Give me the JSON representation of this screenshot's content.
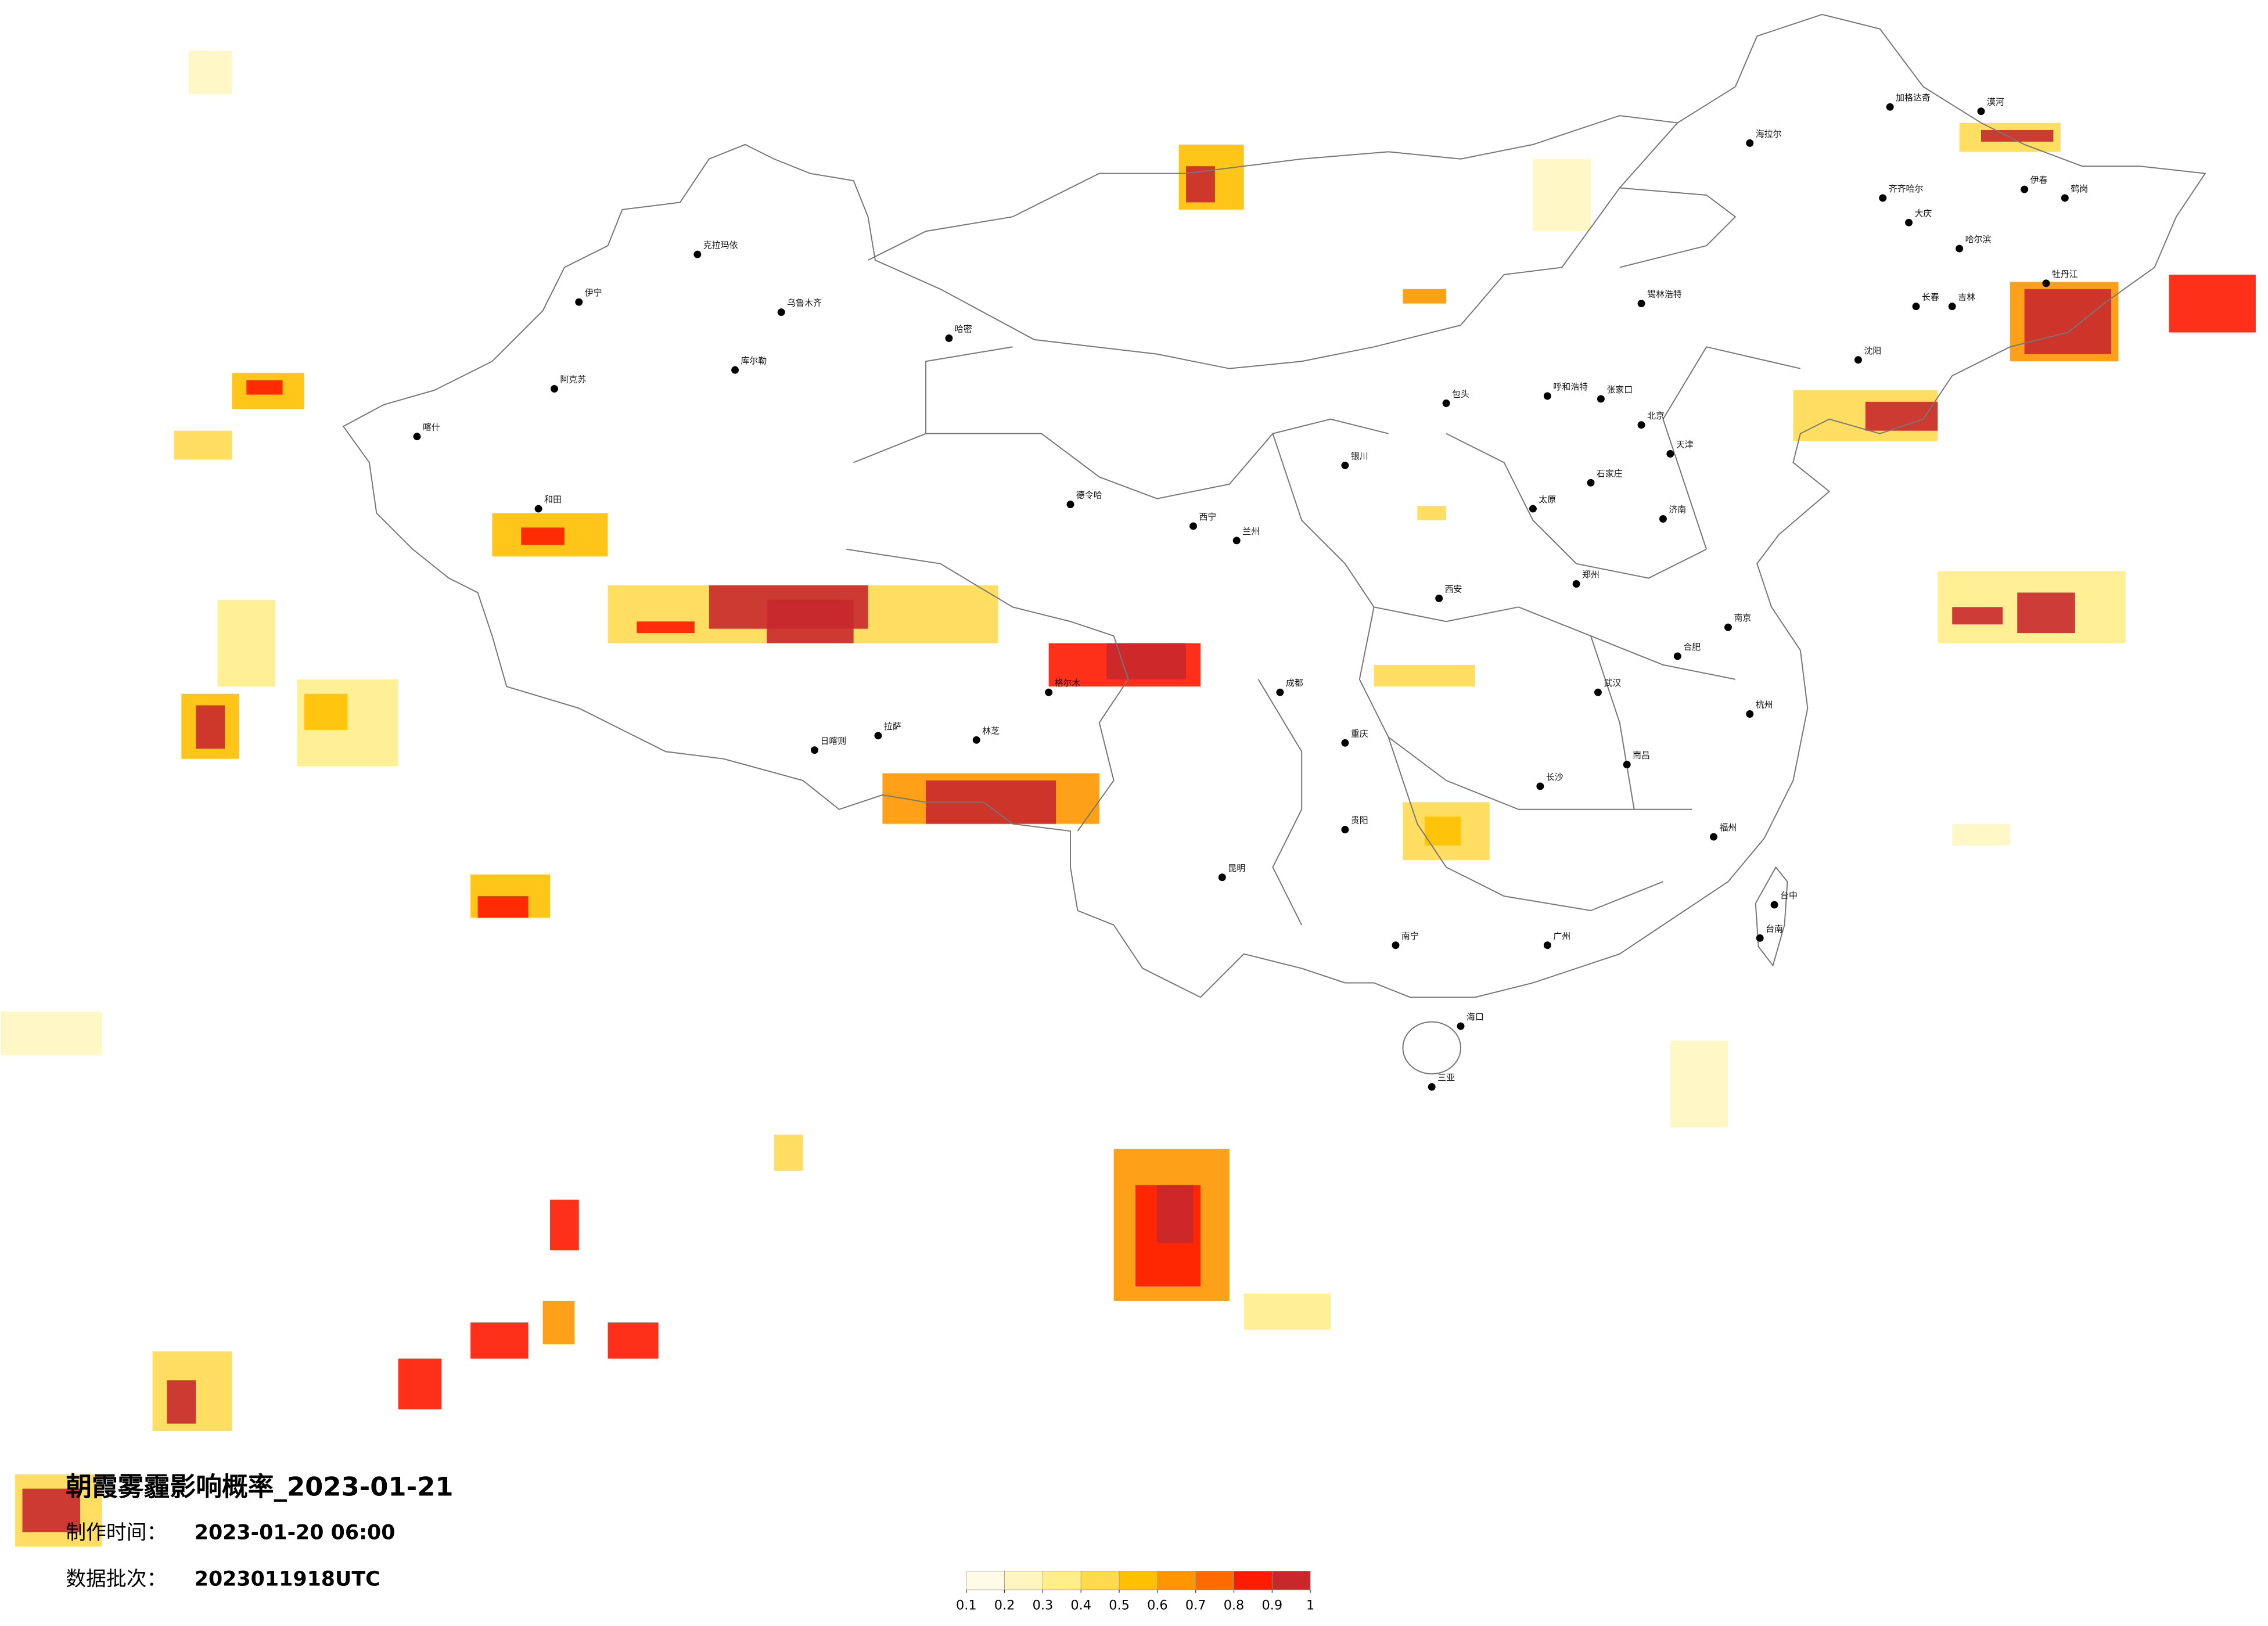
{
  "title": "朝霞雾霾影响概率_2023-01-21",
  "info": {
    "production_label": "制作时间：",
    "production_time": "2023-01-20 06:00",
    "batch_label": "数据批次：",
    "batch": "2023011918UTC"
  },
  "legend": {
    "ticks": [
      0.1,
      0.2,
      0.3,
      0.4,
      0.5,
      0.6,
      0.7,
      0.8,
      0.9,
      1
    ],
    "colors": [
      "#fffbe6",
      "#fff6bf",
      "#ffee8a",
      "#ffda50",
      "#ffc000",
      "#ff9600",
      "#ff6a00",
      "#ff1a00",
      "#c8282c"
    ]
  },
  "cities": [
    "漠河",
    "加格达奇",
    "海拉尔",
    "齐齐哈尔",
    "大庆",
    "哈尔滨",
    "伊春",
    "鹤岗",
    "牡丹江",
    "长春",
    "吉林",
    "锡林浩特",
    "呼和浩特",
    "包头",
    "张家口",
    "北京",
    "天津",
    "石家庄",
    "太原",
    "济南",
    "郑州",
    "西安",
    "兰州",
    "西宁",
    "银川",
    "乌鲁木齐",
    "克拉玛依",
    "伊宁",
    "阿克苏",
    "喀什",
    "和田",
    "哈密",
    "库尔勒",
    "拉萨",
    "日喀则",
    "林芝",
    "成都",
    "重庆",
    "贵阳",
    "昆明",
    "南宁",
    "广州",
    "长沙",
    "武汉",
    "南京",
    "杭州",
    "福州",
    "南昌",
    "合肥",
    "台中",
    "台南",
    "海口",
    "三亚",
    "沈阳",
    "德令哈",
    "格尔木"
  ]
}
